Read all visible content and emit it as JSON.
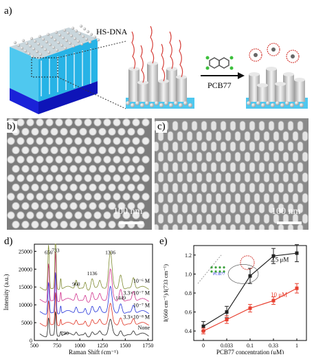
{
  "panel_labels": {
    "a": "a)",
    "b": "b)",
    "c": "c)",
    "d": "d)",
    "e": "e)"
  },
  "schematic": {
    "hs_dna_label": "HS-DNA",
    "reagent_label": "PCB77"
  },
  "sem_images": {
    "b_scale_text": "100 nm",
    "c_scale_text": "100 nm"
  },
  "chart_data": [
    {
      "panel": "d",
      "type": "line",
      "xlabel": "Raman Shift (cm⁻¹)",
      "ylabel": "Intensity (a.u.)",
      "xlim": [
        500,
        1800
      ],
      "ylim": [
        0,
        27000
      ],
      "xticks": [
        500,
        750,
        1000,
        1250,
        1500,
        1750
      ],
      "yticks": [
        0,
        5000,
        10000,
        15000,
        20000,
        25000
      ],
      "series": [
        {
          "name": "None",
          "color": "#222222",
          "offset": 1500
        },
        {
          "name": "3.3×10⁻⁸ M",
          "color": "#e03020",
          "offset": 4500
        },
        {
          "name": "10⁻⁷ M",
          "color": "#2030d8",
          "offset": 7800
        },
        {
          "name": "3.3×10⁻⁷ M",
          "color": "#d0308c",
          "offset": 11200
        },
        {
          "name": "10⁻⁶ M",
          "color": "#7f8a30",
          "offset": 14600
        }
      ],
      "peaks": [
        656,
        733,
        790,
        960,
        1136,
        1336,
        1449
      ],
      "peak_labels": [
        "656",
        "733",
        "790",
        "960",
        "1136",
        "1336",
        "1449"
      ]
    },
    {
      "panel": "e",
      "type": "line",
      "xlabel": "PCB77 concentration (μM)",
      "ylabel": "I(660 cm⁻¹)/I(733 cm⁻¹)",
      "categories": [
        "0",
        "0.033",
        "0.1",
        "0.33",
        "1"
      ],
      "ylim": [
        0.3,
        1.3
      ],
      "yticks": [
        0.4,
        0.6,
        0.8,
        1.0,
        1.2
      ],
      "series": [
        {
          "name": "2.5 μM",
          "color": "#222222",
          "values": [
            0.45,
            0.6,
            0.98,
            1.19,
            1.22
          ],
          "errors": [
            0.05,
            0.06,
            0.08,
            0.08,
            0.09
          ]
        },
        {
          "name": "10 μM",
          "color": "#e84030",
          "values": [
            0.4,
            0.52,
            0.64,
            0.72,
            0.85
          ],
          "errors": [
            0.03,
            0.04,
            0.04,
            0.04,
            0.05
          ]
        }
      ],
      "inset_label": "PCB77"
    }
  ]
}
